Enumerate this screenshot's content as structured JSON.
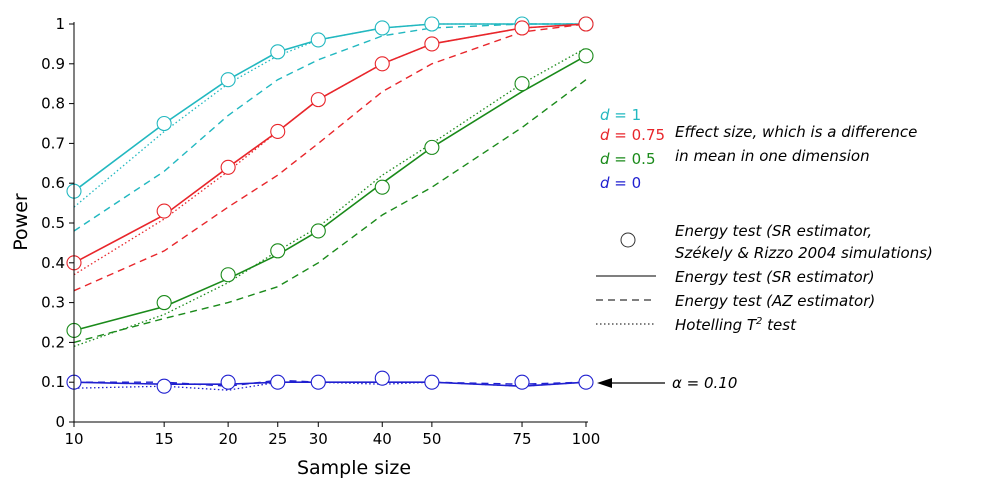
{
  "chart_data": {
    "type": "line",
    "xlabel": "Sample size",
    "ylabel": "Power",
    "x_scale": "log",
    "xlim": [
      10,
      100
    ],
    "ylim": [
      0,
      1
    ],
    "xticks": [
      10,
      15,
      20,
      25,
      30,
      40,
      50,
      75,
      100
    ],
    "yticks": [
      0,
      0.1,
      0.2,
      0.3,
      0.4,
      0.5,
      0.6,
      0.7,
      0.8,
      0.9,
      1
    ],
    "x": [
      10,
      15,
      20,
      25,
      30,
      40,
      50,
      75,
      100
    ],
    "colors": {
      "d1": "#22b8c0",
      "d075": "#e8262b",
      "d05": "#1a8a1a",
      "d0": "#2020d0"
    },
    "series": [
      {
        "group": "d = 1",
        "color_key": "d1",
        "circles": [
          0.58,
          0.75,
          0.86,
          0.93,
          0.96,
          0.99,
          1.0,
          1.0,
          1.0
        ],
        "sr": [
          0.58,
          0.75,
          0.86,
          0.93,
          0.96,
          0.99,
          1.0,
          1.0,
          1.0
        ],
        "az": [
          0.48,
          0.63,
          0.77,
          0.86,
          0.91,
          0.97,
          0.99,
          1.0,
          1.0
        ],
        "hotelling": [
          0.54,
          0.73,
          0.85,
          0.92,
          0.96,
          0.99,
          1.0,
          1.0,
          1.0
        ]
      },
      {
        "group": "d = 0.75",
        "color_key": "d075",
        "circles": [
          0.4,
          0.53,
          0.64,
          0.73,
          0.81,
          0.9,
          0.95,
          0.99,
          1.0
        ],
        "sr": [
          0.4,
          0.52,
          0.64,
          0.73,
          0.81,
          0.9,
          0.95,
          0.99,
          1.0
        ],
        "az": [
          0.33,
          0.43,
          0.54,
          0.62,
          0.7,
          0.83,
          0.9,
          0.98,
          1.0
        ],
        "hotelling": [
          0.37,
          0.51,
          0.63,
          0.73,
          0.81,
          0.9,
          0.95,
          0.99,
          1.0
        ]
      },
      {
        "group": "d = 0.5",
        "color_key": "d05",
        "circles": [
          0.23,
          0.3,
          0.37,
          0.43,
          0.48,
          0.59,
          0.69,
          0.85,
          0.92
        ],
        "sr": [
          0.23,
          0.29,
          0.36,
          0.42,
          0.48,
          0.6,
          0.69,
          0.83,
          0.92
        ],
        "az": [
          0.2,
          0.26,
          0.3,
          0.34,
          0.4,
          0.52,
          0.59,
          0.74,
          0.86
        ],
        "hotelling": [
          0.19,
          0.27,
          0.35,
          0.43,
          0.49,
          0.62,
          0.7,
          0.85,
          0.94
        ]
      },
      {
        "group": "d = 0",
        "color_key": "d0",
        "circles": [
          0.1,
          0.09,
          0.1,
          0.1,
          0.1,
          0.11,
          0.1,
          0.1,
          0.1
        ],
        "sr": [
          0.1,
          0.095,
          0.095,
          0.1,
          0.1,
          0.1,
          0.1,
          0.09,
          0.1
        ],
        "az": [
          0.1,
          0.1,
          0.09,
          0.105,
          0.1,
          0.1,
          0.1,
          0.095,
          0.1
        ],
        "hotelling": [
          0.085,
          0.09,
          0.08,
          0.1,
          0.1,
          0.095,
          0.1,
          0.09,
          0.1
        ]
      }
    ],
    "annotations": {
      "d_labels": [
        {
          "prefix": "d",
          "value": " = 1",
          "color_key": "d1"
        },
        {
          "prefix": "d",
          "value": " = 0.75",
          "color_key": "d075"
        },
        {
          "prefix": "d",
          "value": " = 0.5",
          "color_key": "d05"
        },
        {
          "prefix": "d",
          "value": " = 0",
          "color_key": "d0"
        }
      ],
      "effect_line1": "Effect size, which is a difference",
      "effect_line2": "in mean in one dimension",
      "alpha_symbol": "α",
      "alpha_value": " = 0.10"
    },
    "legend": {
      "position": "right",
      "circle_line1": "Energy test (SR estimator,",
      "circle_line2": "Székely & Rizzo 2004 simulations)",
      "sr": "Energy test (SR estimator)",
      "az": "Energy test (AZ estimator)",
      "hotelling_prefix": "Hotelling T",
      "hotelling_sup": "2",
      "hotelling_suffix": " test"
    }
  }
}
